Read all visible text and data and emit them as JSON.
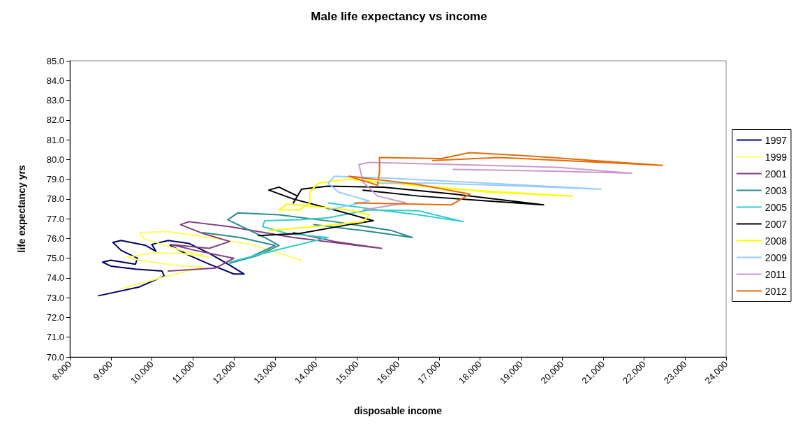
{
  "chart_data": {
    "type": "line",
    "title": "Male life expectancy vs income",
    "xlabel": "disposable income",
    "ylabel": "life expectancy yrs",
    "xlim": [
      8000,
      24000
    ],
    "xticks": [
      {
        "value": 8000,
        "label": "8,000"
      },
      {
        "value": 9000,
        "label": "9,000"
      },
      {
        "value": 10000,
        "label": "10,000"
      },
      {
        "value": 11000,
        "label": "11,000"
      },
      {
        "value": 12000,
        "label": "12,000"
      },
      {
        "value": 13000,
        "label": "13,000"
      },
      {
        "value": 14000,
        "label": "14,000"
      },
      {
        "value": 15000,
        "label": "15,000"
      },
      {
        "value": 16000,
        "label": "16,000"
      },
      {
        "value": 17000,
        "label": "17,000"
      },
      {
        "value": 18000,
        "label": "18,000"
      },
      {
        "value": 19000,
        "label": "19,000"
      },
      {
        "value": 20000,
        "label": "20,000"
      },
      {
        "value": 21000,
        "label": "21,000"
      },
      {
        "value": 22000,
        "label": "22,000"
      },
      {
        "value": 23000,
        "label": "23,000"
      },
      {
        "value": 24000,
        "label": "24,000"
      }
    ],
    "ylim": [
      70,
      85
    ],
    "yticks": [
      {
        "value": 70,
        "label": "70.0"
      },
      {
        "value": 71,
        "label": "71.0"
      },
      {
        "value": 72,
        "label": "72.0"
      },
      {
        "value": 73,
        "label": "73.0"
      },
      {
        "value": 74,
        "label": "74.0"
      },
      {
        "value": 75,
        "label": "75.0"
      },
      {
        "value": 76,
        "label": "76.0"
      },
      {
        "value": 77,
        "label": "77.0"
      },
      {
        "value": 78,
        "label": "78.0"
      },
      {
        "value": 79,
        "label": "79.0"
      },
      {
        "value": 80,
        "label": "80.0"
      },
      {
        "value": 81,
        "label": "81.0"
      },
      {
        "value": 82,
        "label": "82.0"
      },
      {
        "value": 83,
        "label": "83.0"
      },
      {
        "value": 84,
        "label": "84.0"
      },
      {
        "value": 85,
        "label": "85.0"
      }
    ],
    "grid": false,
    "legend": "right",
    "marker": "none",
    "series": [
      {
        "name": "1997",
        "color": "#000066",
        "x": [
          8700,
          9700,
          10300,
          10250,
          9600,
          9000,
          8800,
          9000,
          9600,
          9650,
          9250,
          9050,
          9250,
          9850,
          10100,
          10000,
          10400,
          10900,
          11400,
          11900,
          12250,
          12000,
          11400,
          10900,
          10450
        ],
        "values": [
          73.1,
          73.55,
          74.1,
          74.35,
          74.45,
          74.6,
          74.8,
          74.9,
          74.7,
          75.0,
          75.4,
          75.8,
          75.9,
          75.65,
          75.35,
          75.7,
          75.9,
          75.75,
          75.25,
          74.65,
          74.2,
          74.2,
          74.7,
          75.15,
          75.65
        ]
      },
      {
        "name": "1999",
        "color": "#ffff66",
        "x": [
          9250,
          10200,
          11250,
          10550,
          9700,
          9400,
          9950,
          10700,
          11400,
          10550,
          9800,
          9700,
          10400,
          11400,
          12400,
          13650
        ],
        "values": [
          73.45,
          74.0,
          74.55,
          74.65,
          74.9,
          75.05,
          75.25,
          75.25,
          75.05,
          75.5,
          76.0,
          76.3,
          76.35,
          76.05,
          75.7,
          74.9
        ]
      },
      {
        "name": "2001",
        "color": "#7f3f7f",
        "x": [
          10400,
          11550,
          12000,
          11050,
          10450,
          11400,
          11900,
          11250,
          10700,
          10900,
          11900,
          13450,
          14800,
          15600,
          14450,
          13450
        ],
        "values": [
          74.35,
          74.5,
          75.0,
          75.4,
          75.7,
          75.5,
          75.85,
          76.25,
          76.7,
          76.85,
          76.6,
          76.05,
          75.7,
          75.5,
          75.85,
          76.3
        ]
      },
      {
        "name": "2003",
        "color": "#2e8b8b",
        "x": [
          11250,
          12150,
          13000,
          12400,
          11900,
          12600,
          13100,
          12750,
          11850,
          12100,
          13100,
          14450,
          15850,
          16350,
          15150,
          13950
        ],
        "values": [
          76.3,
          76.05,
          75.65,
          75.05,
          74.75,
          75.15,
          75.65,
          76.05,
          76.95,
          77.3,
          77.2,
          76.85,
          76.4,
          76.05,
          76.4,
          76.7
        ]
      },
      {
        "name": "2005",
        "color": "#33cccc",
        "x": [
          11900,
          13100,
          14300,
          13300,
          12700,
          12750,
          13600,
          14300,
          15300,
          16500,
          17600,
          16500,
          15500,
          14300
        ],
        "values": [
          74.8,
          75.45,
          76.05,
          76.25,
          76.6,
          76.9,
          76.95,
          77.05,
          77.45,
          77.4,
          76.85,
          77.2,
          77.45,
          77.8
        ]
      },
      {
        "name": "2007",
        "color": "#000000",
        "x": [
          12600,
          13600,
          14800,
          15400,
          14450,
          13450,
          12850,
          13100,
          13550,
          13450,
          13650,
          14300,
          15650,
          17350,
          19550,
          18200,
          16500,
          15150
        ],
        "values": [
          76.15,
          76.25,
          76.7,
          76.9,
          77.45,
          78.0,
          78.45,
          78.6,
          78.15,
          77.8,
          78.5,
          78.65,
          78.6,
          78.25,
          77.7,
          77.9,
          78.15,
          78.45
        ]
      },
      {
        "name": "2008",
        "color": "#ffff00",
        "x": [
          12850,
          13950,
          15150,
          15300,
          14800,
          13800,
          13300,
          13100,
          13600,
          13850,
          13850,
          14050,
          14800,
          15850,
          17350,
          20250,
          18200,
          16500
        ],
        "values": [
          76.4,
          76.6,
          76.85,
          77.2,
          77.45,
          77.65,
          77.75,
          77.45,
          77.45,
          77.8,
          78.35,
          78.8,
          79.0,
          78.8,
          78.5,
          78.15,
          78.35,
          78.7
        ]
      },
      {
        "name": "2009",
        "color": "#99ccff",
        "x": [
          14300,
          15300,
          14550,
          14300,
          14450,
          15850,
          18200,
          20950,
          19100,
          16850,
          15500
        ],
        "values": [
          77.45,
          77.9,
          78.35,
          78.8,
          79.15,
          79.05,
          78.8,
          78.5,
          78.65,
          78.8,
          78.8
        ]
      },
      {
        "name": "2011",
        "color": "#cc99cc",
        "x": [
          15150,
          16200,
          15500,
          15150,
          15050,
          15300,
          17350,
          19950,
          21700,
          19950,
          17350
        ],
        "values": [
          77.45,
          77.8,
          78.15,
          78.85,
          79.75,
          79.85,
          79.75,
          79.6,
          79.3,
          79.4,
          79.5
        ]
      },
      {
        "name": "2012",
        "color": "#e46c0a",
        "x": [
          14950,
          17300,
          17750,
          16450,
          14800,
          15500,
          15550,
          15550,
          17050,
          17750,
          19050,
          20750,
          22450,
          21000,
          18450,
          16850
        ],
        "values": [
          77.8,
          77.7,
          78.25,
          78.75,
          79.15,
          78.7,
          79.35,
          80.1,
          80.05,
          80.35,
          80.2,
          79.95,
          79.7,
          79.85,
          80.1,
          79.95
        ]
      }
    ]
  }
}
